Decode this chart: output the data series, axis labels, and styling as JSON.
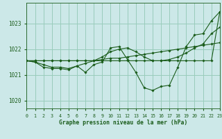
{
  "background_color": "#cce8e8",
  "grid_color": "#99ccbb",
  "line_color": "#1a5c1a",
  "title": "Graphe pression niveau de la mer (hPa)",
  "xlim": [
    0,
    23
  ],
  "ylim": [
    1019.7,
    1023.8
  ],
  "yticks": [
    1020,
    1021,
    1022,
    1023
  ],
  "xticks": [
    0,
    1,
    2,
    3,
    4,
    5,
    6,
    7,
    8,
    9,
    10,
    11,
    12,
    13,
    14,
    15,
    16,
    17,
    18,
    19,
    20,
    21,
    22,
    23
  ],
  "series": [
    [
      1021.55,
      1021.55,
      1021.55,
      1021.55,
      1021.55,
      1021.55,
      1021.55,
      1021.55,
      1021.55,
      1021.55,
      1021.55,
      1021.55,
      1021.55,
      1021.55,
      1021.55,
      1021.55,
      1021.55,
      1021.55,
      1021.55,
      1021.55,
      1021.55,
      1021.55,
      1021.55,
      1023.45
    ],
    [
      1021.55,
      1021.55,
      1021.55,
      1021.55,
      1021.55,
      1021.55,
      1021.55,
      1021.55,
      1021.55,
      1021.6,
      1021.65,
      1021.65,
      1021.7,
      1021.75,
      1021.8,
      1021.85,
      1021.9,
      1021.95,
      1022.0,
      1022.05,
      1022.1,
      1022.15,
      1022.2,
      1022.25
    ],
    [
      1021.55,
      1021.5,
      1021.4,
      1021.3,
      1021.3,
      1021.25,
      1021.35,
      1021.45,
      1021.55,
      1021.7,
      1021.9,
      1022.0,
      1022.05,
      1021.9,
      1021.7,
      1021.55,
      1021.55,
      1021.6,
      1021.7,
      1021.85,
      1022.05,
      1022.2,
      1022.6,
      1022.85
    ],
    [
      1021.55,
      1021.5,
      1021.3,
      1021.25,
      1021.25,
      1021.2,
      1021.35,
      1021.1,
      1021.4,
      1021.5,
      1022.05,
      1022.1,
      1021.6,
      1021.1,
      1020.5,
      1020.4,
      1020.55,
      1020.6,
      1021.3,
      1022.1,
      1022.55,
      1022.6,
      1023.1,
      1023.45
    ]
  ]
}
